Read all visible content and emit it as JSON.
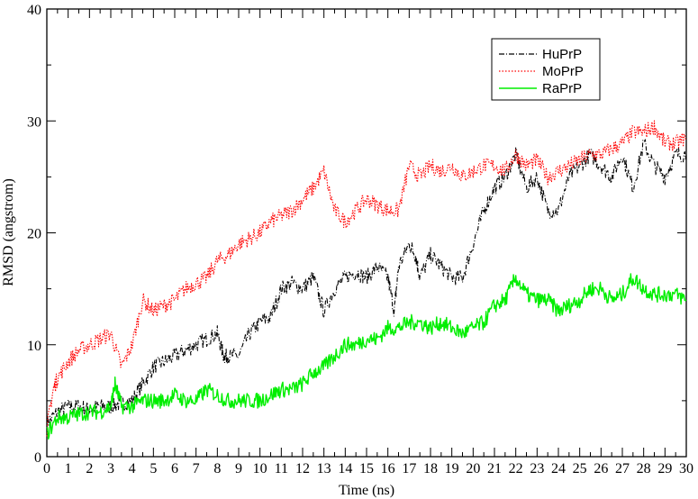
{
  "chart_data": {
    "type": "line",
    "xlabel": "Time (ns)",
    "ylabel": "RMSD (angstrom)",
    "xlim": [
      0,
      30
    ],
    "ylim": [
      0,
      40
    ],
    "x_ticks": [
      "0",
      "1",
      "2",
      "3",
      "4",
      "5",
      "6",
      "7",
      "8",
      "9",
      "10",
      "11",
      "12",
      "13",
      "14",
      "15",
      "16",
      "17",
      "18",
      "19",
      "20",
      "21",
      "22",
      "23",
      "24",
      "25",
      "26",
      "27",
      "28",
      "29",
      "30"
    ],
    "y_ticks": [
      "0",
      "10",
      "20",
      "30",
      "40"
    ],
    "grid": false,
    "legend_position": "top-right",
    "series": [
      {
        "name": "HuPrP",
        "color": "#000000",
        "style": "dash-dot",
        "x": [
          0,
          0.5,
          1,
          1.5,
          2,
          2.5,
          3,
          3.5,
          4,
          4.5,
          5,
          5.5,
          6,
          6.5,
          7,
          7.5,
          8,
          8.3,
          8.5,
          9,
          9.5,
          10,
          10.5,
          11,
          11.5,
          12,
          12.5,
          13,
          13.5,
          14,
          14.5,
          15,
          15.5,
          16,
          16.3,
          16.5,
          17,
          17.3,
          17.5,
          18,
          18.5,
          19,
          19.5,
          20,
          20.5,
          21,
          21.5,
          22,
          22.5,
          23,
          23.5,
          24,
          24.5,
          25,
          25.5,
          26,
          26.5,
          27,
          27.5,
          28,
          28.5,
          29,
          29.5,
          30
        ],
        "values": [
          3,
          4,
          4.5,
          4.5,
          4.2,
          4.5,
          4.5,
          4.8,
          5,
          6.5,
          8,
          8.5,
          9,
          9.5,
          10,
          10.5,
          11,
          9,
          9,
          9,
          11,
          12,
          12.5,
          15,
          15.5,
          15,
          16,
          13,
          15,
          16,
          16.5,
          16,
          17,
          16,
          13,
          17,
          19,
          18,
          16,
          18,
          17,
          16,
          16,
          19,
          22,
          24,
          25,
          27,
          24,
          25,
          22,
          22,
          25,
          26,
          27,
          26,
          25,
          27,
          24,
          28,
          26,
          25,
          27,
          27
        ]
      },
      {
        "name": "MoPrP",
        "color": "#ff0000",
        "style": "dotted",
        "x": [
          0,
          0.3,
          0.5,
          1,
          1.5,
          2,
          2.5,
          3,
          3.5,
          4,
          4.5,
          5,
          5.5,
          6,
          6.5,
          7,
          7.5,
          8,
          8.5,
          9,
          9.5,
          10,
          10.5,
          11,
          11.5,
          12,
          12.5,
          13,
          13.5,
          14,
          14.5,
          15,
          15.5,
          16,
          16.5,
          17,
          17.5,
          18,
          18.5,
          19,
          19.5,
          20,
          20.5,
          21,
          21.5,
          22,
          22.5,
          23,
          23.5,
          24,
          24.5,
          25,
          25.5,
          26,
          26.5,
          27,
          27.5,
          28,
          28.5,
          29,
          29.5,
          30
        ],
        "values": [
          2.5,
          6,
          7,
          8.5,
          9.5,
          10,
          10.5,
          11,
          8,
          10,
          14,
          13,
          13.5,
          14,
          15,
          15.5,
          16,
          17.5,
          18,
          19,
          19.5,
          20,
          21,
          21.5,
          22,
          23,
          24,
          25.5,
          22,
          21,
          22,
          23,
          22.5,
          22,
          22,
          26,
          25,
          26,
          25.5,
          26,
          25,
          25.5,
          26,
          26,
          25.5,
          27,
          26,
          26.5,
          25,
          25.5,
          26,
          26.5,
          27,
          27,
          27.5,
          28,
          29,
          29,
          29.5,
          28,
          28,
          28.5
        ]
      },
      {
        "name": "RaPrP",
        "color": "#00ee00",
        "style": "solid",
        "x": [
          0,
          0.5,
          1,
          1.5,
          2,
          2.5,
          3,
          3.2,
          3.5,
          4,
          4.5,
          5,
          5.5,
          6,
          6.5,
          7,
          7.5,
          8,
          8.5,
          9,
          9.5,
          10,
          10.5,
          11,
          11.5,
          12,
          12.5,
          13,
          13.5,
          14,
          14.5,
          15,
          15.5,
          16,
          16.5,
          17,
          17.5,
          18,
          18.5,
          19,
          19.5,
          20,
          20.5,
          21,
          21.5,
          22,
          22.5,
          23,
          23.5,
          24,
          24.5,
          25,
          25.5,
          26,
          26.5,
          27,
          27.5,
          28,
          28.5,
          29,
          29.5,
          30
        ],
        "values": [
          2,
          3.5,
          3.5,
          3.8,
          4,
          4,
          4.5,
          6.5,
          4.5,
          4.5,
          5,
          5,
          5,
          5.5,
          5,
          5,
          6,
          5.5,
          5,
          5,
          5,
          5,
          5.5,
          6,
          6,
          6.5,
          7.5,
          8,
          9,
          10,
          10,
          10.5,
          10.5,
          11.5,
          11.5,
          12,
          12,
          11.5,
          12,
          11.5,
          11,
          11.5,
          12,
          13.5,
          14,
          16,
          14.5,
          14,
          14,
          13,
          13.5,
          14,
          15,
          15,
          14,
          14.5,
          16,
          15,
          14.5,
          14.5,
          14.5,
          14
        ]
      }
    ]
  }
}
